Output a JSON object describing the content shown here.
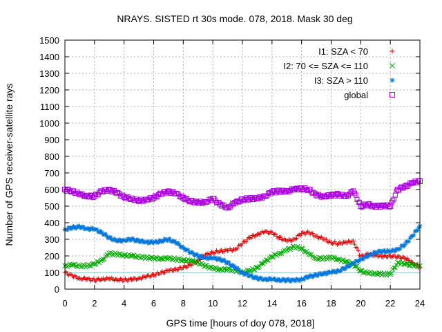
{
  "chart_data": {
    "type": "scatter",
    "title": "NRAYS. SISTED rt 30s mode. 078, 2018. Mask 30 deg",
    "xlabel": "GPS time [hours of doy 078, 2018]",
    "ylabel": "Number of GPS receiver-satellite rays",
    "xlim": [
      0,
      24
    ],
    "ylim": [
      0,
      1500
    ],
    "x_ticks": [
      "0",
      "2",
      "4",
      "6",
      "8",
      "10",
      "12",
      "14",
      "16",
      "18",
      "20",
      "22",
      "24"
    ],
    "y_ticks": [
      "0",
      "100",
      "200",
      "300",
      "400",
      "500",
      "600",
      "700",
      "800",
      "900",
      "1000",
      "1100",
      "1200",
      "1300",
      "1400",
      "1500"
    ],
    "grid": true,
    "legend_position": "top-right",
    "reference_line": {
      "y": 100,
      "color": "#66cccc"
    },
    "series": [
      {
        "name": "I1: SZA < 70",
        "marker": "+",
        "color": "#dd0000",
        "x": [
          0,
          0.5,
          1,
          1.5,
          2,
          2.5,
          3,
          3.5,
          4,
          4.5,
          5,
          5.5,
          6,
          6.5,
          7,
          7.5,
          8,
          8.5,
          9,
          9.5,
          10,
          10.5,
          11,
          11.5,
          12,
          12.5,
          13,
          13.5,
          14,
          14.5,
          15,
          15.5,
          16,
          16.5,
          17,
          17.5,
          18,
          18.5,
          19,
          19.5,
          20,
          20.5,
          21,
          21.5,
          22,
          22.5,
          23,
          23.5,
          24
        ],
        "y": [
          100,
          80,
          65,
          60,
          55,
          60,
          62,
          58,
          55,
          58,
          65,
          75,
          85,
          100,
          110,
          120,
          130,
          145,
          175,
          205,
          220,
          230,
          232,
          240,
          275,
          310,
          330,
          345,
          340,
          310,
          290,
          300,
          335,
          340,
          320,
          300,
          280,
          275,
          280,
          290,
          195,
          210,
          205,
          195,
          200,
          195,
          185,
          160,
          130
        ]
      },
      {
        "name": "I2: 70 <= SZA <= 110",
        "marker": "x",
        "color": "#00aa00",
        "x": [
          0,
          0.5,
          1,
          1.5,
          2,
          2.5,
          3,
          3.5,
          4,
          4.5,
          5,
          5.5,
          6,
          6.5,
          7,
          7.5,
          8,
          8.5,
          9,
          9.5,
          10,
          10.5,
          11,
          11.5,
          12,
          12.5,
          13,
          13.5,
          14,
          14.5,
          15,
          15.5,
          16,
          16.5,
          17,
          17.5,
          18,
          18.5,
          19,
          19.5,
          20,
          20.5,
          21,
          21.5,
          22,
          22.5,
          23,
          23.5,
          24
        ],
        "y": [
          140,
          145,
          140,
          140,
          150,
          175,
          215,
          210,
          205,
          200,
          195,
          190,
          185,
          185,
          185,
          180,
          175,
          170,
          160,
          140,
          125,
          120,
          118,
          115,
          100,
          110,
          130,
          165,
          195,
          215,
          235,
          255,
          245,
          210,
          185,
          185,
          190,
          180,
          165,
          150,
          110,
          95,
          95,
          90,
          90,
          160,
          150,
          145,
          140
        ]
      },
      {
        "name": "I3: SZA > 110",
        "marker": "*",
        "color": "#0077dd",
        "x": [
          0,
          0.5,
          1,
          1.5,
          2,
          2.5,
          3,
          3.5,
          4,
          4.5,
          5,
          5.5,
          6,
          6.5,
          7,
          7.5,
          8,
          8.5,
          9,
          9.5,
          10,
          10.5,
          11,
          11.5,
          12,
          12.5,
          13,
          13.5,
          14,
          14.5,
          15,
          15.5,
          16,
          16.5,
          17,
          17.5,
          18,
          18.5,
          19,
          19.5,
          20,
          20.5,
          21,
          21.5,
          22,
          22.5,
          23,
          23.5,
          24
        ],
        "y": [
          360,
          370,
          375,
          365,
          360,
          340,
          310,
          290,
          295,
          300,
          290,
          285,
          280,
          290,
          300,
          280,
          250,
          220,
          200,
          190,
          185,
          180,
          160,
          130,
          100,
          80,
          65,
          60,
          58,
          55,
          55,
          52,
          60,
          75,
          85,
          95,
          100,
          110,
          130,
          155,
          180,
          200,
          220,
          230,
          225,
          240,
          270,
          320,
          380
        ]
      },
      {
        "name": "global",
        "marker": "square",
        "color": "#aa00dd",
        "x": [
          0,
          0.5,
          1,
          1.5,
          2,
          2.5,
          3,
          3.5,
          4,
          4.5,
          5,
          5.5,
          6,
          6.5,
          7,
          7.5,
          8,
          8.5,
          9,
          9.5,
          10,
          10.5,
          11,
          11.5,
          12,
          12.5,
          13,
          13.5,
          14,
          14.5,
          15,
          15.5,
          16,
          16.5,
          17,
          17.5,
          18,
          18.5,
          19,
          19.5,
          20,
          20.5,
          21,
          21.5,
          22,
          22.5,
          23,
          23.5,
          24
        ],
        "y": [
          600,
          590,
          570,
          560,
          560,
          590,
          600,
          580,
          555,
          545,
          530,
          540,
          550,
          575,
          590,
          575,
          550,
          530,
          520,
          525,
          545,
          510,
          490,
          520,
          540,
          545,
          545,
          560,
          585,
          590,
          590,
          600,
          605,
          600,
          565,
          560,
          565,
          570,
          560,
          590,
          500,
          510,
          495,
          505,
          500,
          600,
          620,
          640,
          650
        ]
      }
    ]
  }
}
